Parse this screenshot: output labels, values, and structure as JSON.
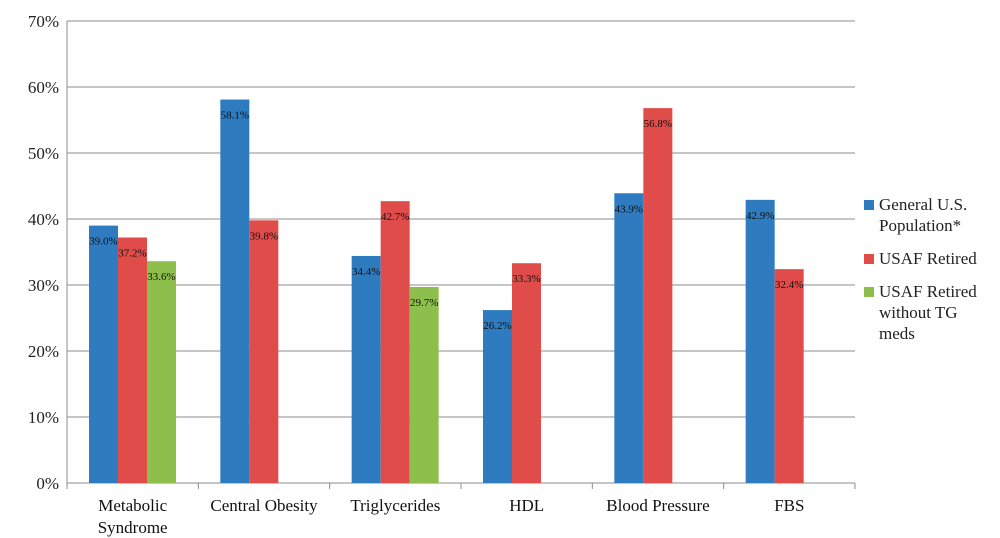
{
  "colors": {
    "grid": "#8c8c8c",
    "axis": "#8c8c8c"
  },
  "chart_data": {
    "type": "bar",
    "title": "",
    "xlabel": "",
    "ylabel": "",
    "ylim": [
      0,
      70
    ],
    "y_ticks": [
      "0%",
      "10%",
      "20%",
      "30%",
      "40%",
      "50%",
      "60%",
      "70%"
    ],
    "y_tick_values": [
      0,
      10,
      20,
      30,
      40,
      50,
      60,
      70
    ],
    "grid": true,
    "legend_position": "right",
    "categories": [
      [
        "Metabolic",
        "Syndrome"
      ],
      [
        "Central Obesity"
      ],
      [
        "Triglycerides"
      ],
      [
        "HDL"
      ],
      [
        "Blood Pressure"
      ],
      [
        "FBS"
      ]
    ],
    "series": [
      {
        "name": [
          "General U.S.",
          "Population*"
        ],
        "color": "#2e7bbf",
        "values": [
          39.0,
          58.1,
          34.4,
          26.2,
          43.9,
          42.9
        ],
        "labels": [
          "39.0%",
          "58.1%",
          "34.4%",
          "26.2%",
          "43.9%",
          "42.9%"
        ]
      },
      {
        "name": [
          "USAF Retired"
        ],
        "color": "#e04c4a",
        "values": [
          37.2,
          39.8,
          42.7,
          33.3,
          56.8,
          32.4
        ],
        "labels": [
          "37.2%",
          "39.8%",
          "42.7%",
          "33.3%",
          "56.8%",
          "32.4%"
        ]
      },
      {
        "name": [
          "USAF Retired",
          "without TG",
          "meds"
        ],
        "color": "#8ebf4c",
        "values": [
          33.6,
          null,
          29.7,
          null,
          null,
          null
        ],
        "labels": [
          "33.6%",
          "",
          "29.7%",
          "",
          "",
          ""
        ]
      }
    ]
  }
}
